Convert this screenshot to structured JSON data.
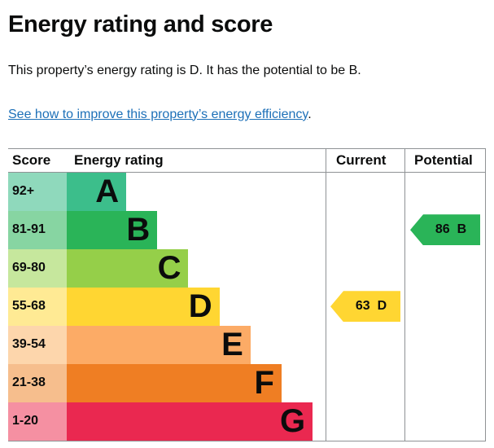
{
  "page": {
    "heading": "Energy rating and score",
    "intro": "This property’s energy rating is D. It has the potential to be B.",
    "improve_link": "See how to improve this property’s energy efficiency",
    "improve_link_suffix": "."
  },
  "chart_data": {
    "type": "bar",
    "title": "Energy rating and score",
    "columns": [
      "Score",
      "Energy rating",
      "Current",
      "Potential"
    ],
    "bands": [
      {
        "score_range": "92+",
        "letter": "A",
        "color": "#3cbe8b",
        "tint": "#8fd9bc",
        "width_pct": 23
      },
      {
        "score_range": "81-91",
        "letter": "B",
        "color": "#2ab458",
        "tint": "#87d5a2",
        "width_pct": 35
      },
      {
        "score_range": "69-80",
        "letter": "C",
        "color": "#95cf49",
        "tint": "#c6e79d",
        "width_pct": 47
      },
      {
        "score_range": "55-68",
        "letter": "D",
        "color": "#ffd632",
        "tint": "#ffea94",
        "width_pct": 59
      },
      {
        "score_range": "39-54",
        "letter": "E",
        "color": "#fcab66",
        "tint": "#fdd6ac",
        "width_pct": 71
      },
      {
        "score_range": "21-38",
        "letter": "F",
        "color": "#ef7e23",
        "tint": "#f6be8d",
        "width_pct": 83
      },
      {
        "score_range": "1-20",
        "letter": "G",
        "color": "#ea2850",
        "tint": "#f590a2",
        "width_pct": 95
      }
    ],
    "current": {
      "score": 63,
      "band": "D",
      "band_index": 3,
      "color": "#ffd632"
    },
    "potential": {
      "score": 86,
      "band": "B",
      "band_index": 1,
      "color": "#2ab458"
    }
  }
}
